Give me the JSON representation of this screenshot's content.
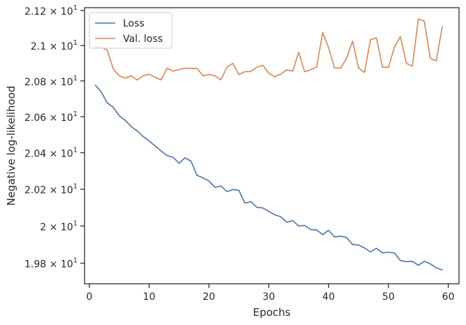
{
  "chart_data": {
    "type": "line",
    "xlabel": "Epochs",
    "ylabel": "Negative log-likelihood",
    "xlim": [
      -0.8,
      61.8
    ],
    "ylim": [
      19.69,
      21.216
    ],
    "y_scale": "log",
    "grid": false,
    "legend_position": "top-left",
    "x_ticks": [
      0,
      10,
      20,
      30,
      40,
      50,
      60
    ],
    "y_ticks": [
      {
        "value": 19.8,
        "label_base": "1.98",
        "label_exp": "1"
      },
      {
        "value": 20.0,
        "label_base": "2",
        "label_exp": "1"
      },
      {
        "value": 20.2,
        "label_base": "2.02",
        "label_exp": "1"
      },
      {
        "value": 20.4,
        "label_base": "2.04",
        "label_exp": "1"
      },
      {
        "value": 20.6,
        "label_base": "2.06",
        "label_exp": "1"
      },
      {
        "value": 20.8,
        "label_base": "2.08",
        "label_exp": "1"
      },
      {
        "value": 21.0,
        "label_base": "2.1",
        "label_exp": "1"
      },
      {
        "value": 21.2,
        "label_base": "2.12",
        "label_exp": "1"
      }
    ],
    "tick_multiplier": "× 10",
    "x": [
      1,
      2,
      3,
      4,
      5,
      6,
      7,
      8,
      9,
      10,
      11,
      12,
      13,
      14,
      15,
      16,
      17,
      18,
      19,
      20,
      21,
      22,
      23,
      24,
      25,
      26,
      27,
      28,
      29,
      30,
      31,
      32,
      33,
      34,
      35,
      36,
      37,
      38,
      39,
      40,
      41,
      42,
      43,
      44,
      45,
      46,
      47,
      48,
      49,
      50,
      51,
      52,
      53,
      54,
      55,
      56,
      57,
      58,
      59
    ],
    "series": [
      {
        "name": "Loss",
        "color": "#4c72b0",
        "values": [
          20.776,
          20.738,
          20.677,
          20.652,
          20.605,
          20.58,
          20.545,
          20.521,
          20.49,
          20.465,
          20.438,
          20.41,
          20.384,
          20.375,
          20.342,
          20.372,
          20.354,
          20.276,
          20.262,
          20.245,
          20.21,
          20.218,
          20.187,
          20.198,
          20.194,
          20.124,
          20.133,
          20.101,
          20.098,
          20.079,
          20.061,
          20.05,
          20.02,
          20.029,
          20.0,
          20.003,
          19.981,
          19.979,
          19.953,
          19.977,
          19.94,
          19.945,
          19.938,
          19.9,
          19.897,
          19.882,
          19.86,
          19.88,
          19.855,
          19.858,
          19.855,
          19.814,
          19.808,
          19.81,
          19.788,
          19.81,
          19.796,
          19.775,
          19.763
        ]
      },
      {
        "name": "Val. loss",
        "color": "#dd8452",
        "values": [
          20.99,
          20.99,
          20.974,
          20.867,
          20.829,
          20.816,
          20.829,
          20.805,
          20.829,
          20.838,
          20.82,
          20.806,
          20.872,
          20.855,
          20.864,
          20.872,
          20.871,
          20.871,
          20.829,
          20.836,
          20.829,
          20.806,
          20.878,
          20.899,
          20.836,
          20.852,
          20.853,
          20.878,
          20.888,
          20.843,
          20.823,
          20.838,
          20.863,
          20.855,
          20.962,
          20.851,
          20.863,
          20.878,
          21.073,
          20.988,
          20.873,
          20.873,
          20.928,
          21.025,
          20.873,
          20.848,
          21.033,
          21.044,
          20.877,
          20.877,
          20.99,
          21.051,
          20.899,
          20.883,
          21.151,
          21.139,
          20.927,
          20.914,
          21.108
        ]
      }
    ]
  }
}
